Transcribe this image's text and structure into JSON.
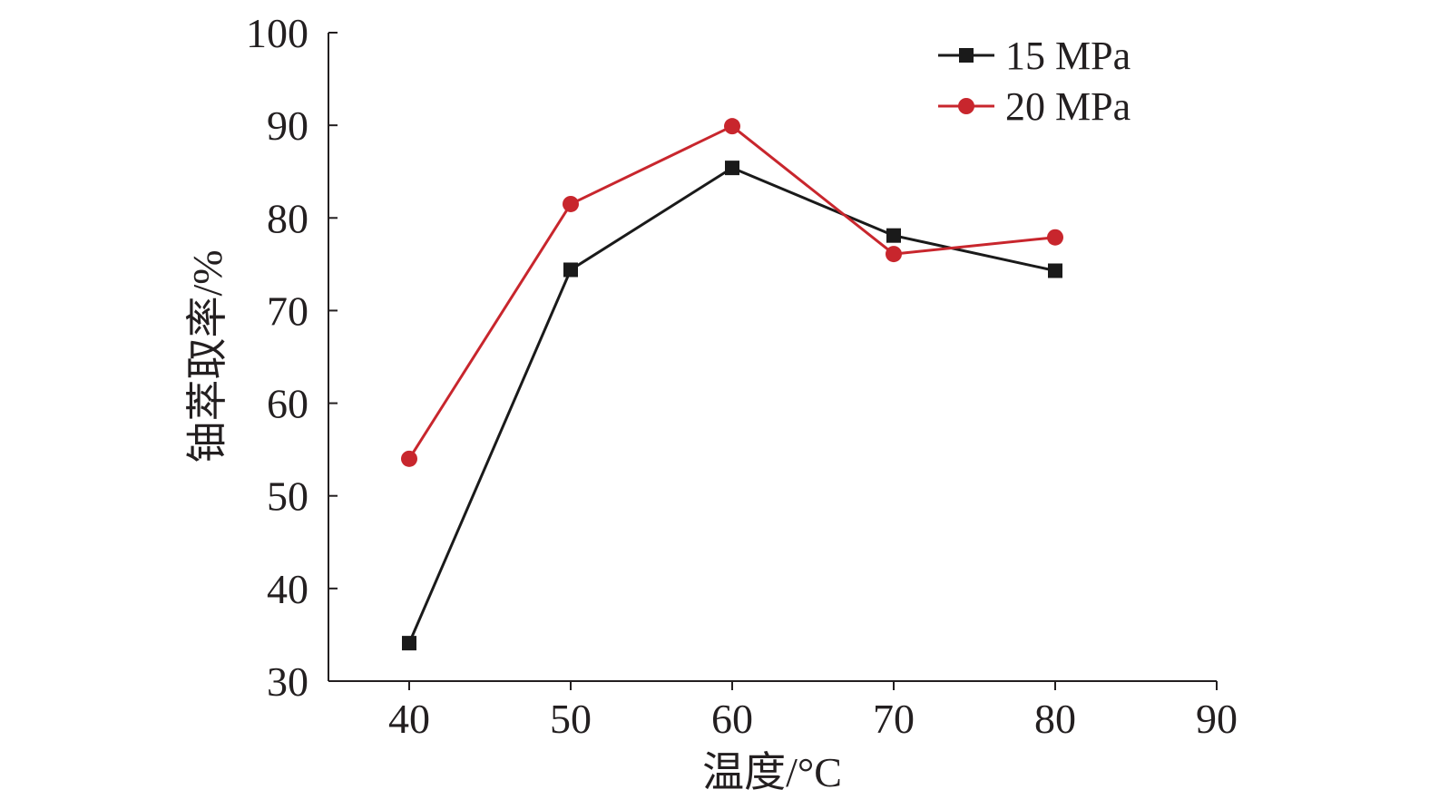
{
  "chart_data": {
    "type": "line",
    "title": "",
    "xlabel": "温度/°C",
    "ylabel": "铀萃取率/%",
    "xlim": [
      35,
      90
    ],
    "ylim": [
      30,
      100
    ],
    "xticks": [
      40,
      50,
      60,
      70,
      80,
      90
    ],
    "yticks": [
      30,
      40,
      50,
      60,
      70,
      80,
      90,
      100
    ],
    "grid": false,
    "legend_position": "top-right",
    "series": [
      {
        "name": "15 MPa",
        "marker": "square",
        "color": "#1a1a1a",
        "x": [
          40,
          50,
          60,
          70,
          80
        ],
        "values": [
          34.1,
          74.4,
          85.4,
          78.1,
          74.3
        ]
      },
      {
        "name": "20 MPa",
        "marker": "circle",
        "color": "#c8262d",
        "x": [
          40,
          50,
          60,
          70,
          80
        ],
        "values": [
          54.0,
          81.5,
          89.9,
          76.1,
          77.9
        ]
      }
    ]
  }
}
